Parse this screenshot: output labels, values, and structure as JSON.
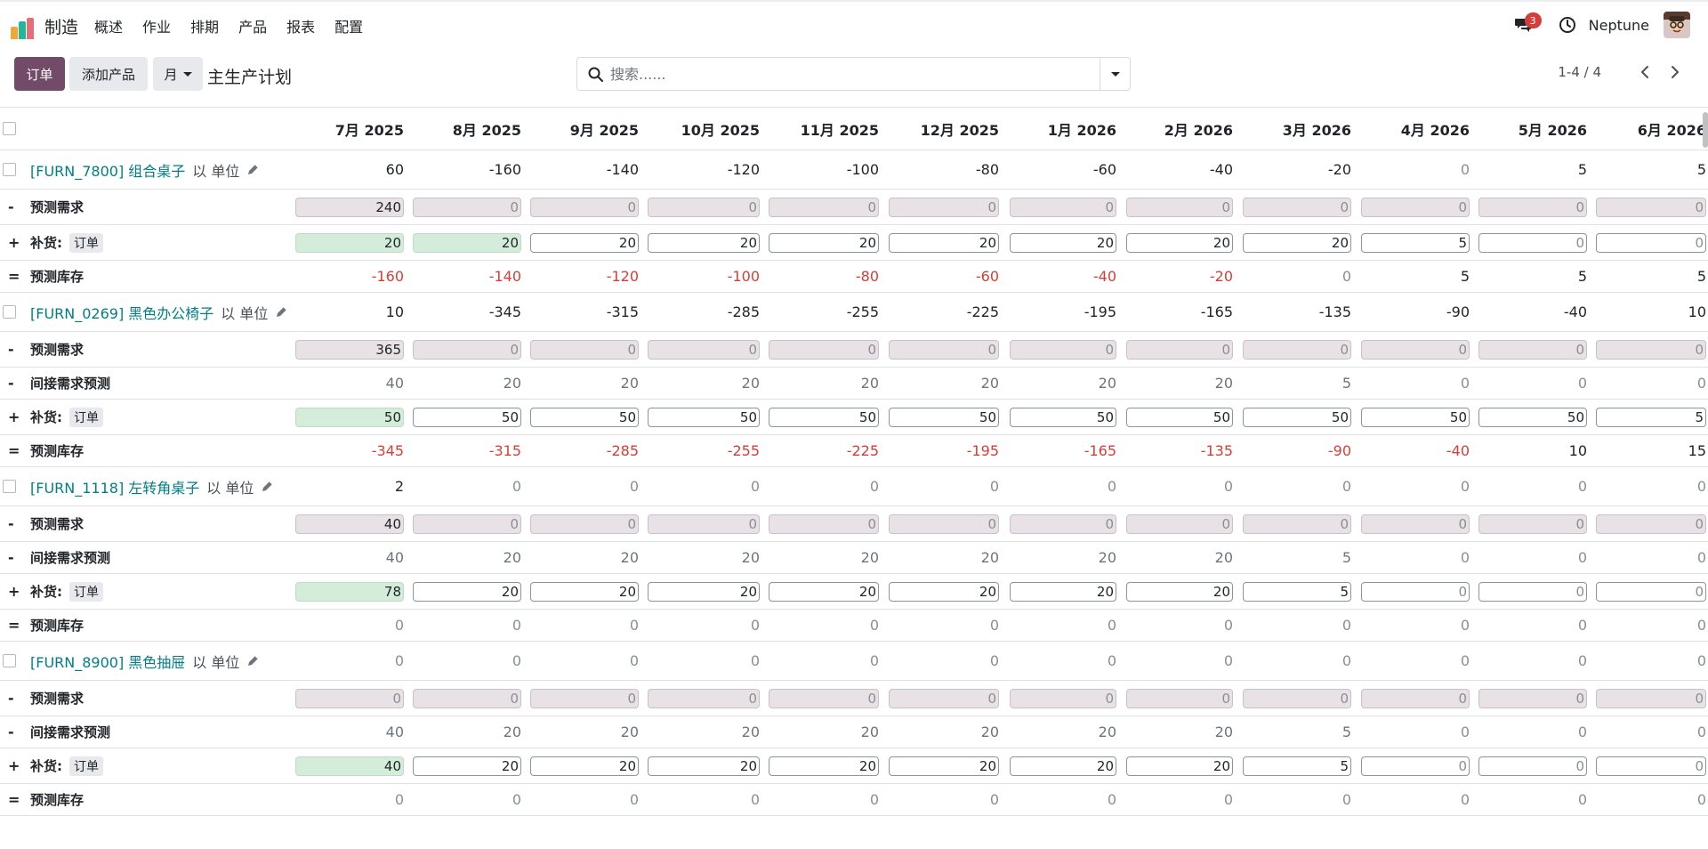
{
  "app": {
    "name": "制造",
    "menu": [
      "概述",
      "作业",
      "排期",
      "产品",
      "报表",
      "配置"
    ],
    "logo_colors": [
      "#f2a53a",
      "#21b799",
      "#5b899e",
      "#e46f78"
    ]
  },
  "navbar": {
    "messages_count": "3",
    "user_name": "Neptune"
  },
  "control_panel": {
    "order_button": "订单",
    "add_product_button": "添加产品",
    "period_button": "月",
    "title": "主生产计划",
    "search_placeholder": "搜索......",
    "pager": "1-4 / 4"
  },
  "grid": {
    "columns": [
      "7月 2025",
      "8月 2025",
      "9月 2025",
      "10月 2025",
      "11月 2025",
      "12月 2025",
      "1月 2026",
      "2月 2026",
      "3月 2026",
      "4月 2026",
      "5月 2026",
      "6月 2026"
    ],
    "labels": {
      "demand": "预测需求",
      "indirect": "间接需求预测",
      "replenish": "补货:",
      "order_tag": "订单",
      "stock": "预测库存",
      "uom": "以 单位"
    },
    "products": [
      {
        "name": "[FURN_7800] 组合桌子",
        "starting": [
          "60",
          "-160",
          "-140",
          "-120",
          "-100",
          "-80",
          "-60",
          "-40",
          "-20",
          "0",
          "5",
          "5"
        ],
        "demand": [
          "240",
          "0",
          "0",
          "0",
          "0",
          "0",
          "0",
          "0",
          "0",
          "0",
          "0",
          "0"
        ],
        "indirect": null,
        "replenish": [
          "20",
          "20",
          "20",
          "20",
          "20",
          "20",
          "20",
          "20",
          "20",
          "5",
          "0",
          "0"
        ],
        "replenish_green": 2,
        "stock": [
          "-160",
          "-140",
          "-120",
          "-100",
          "-80",
          "-60",
          "-40",
          "-20",
          "0",
          "5",
          "5",
          "5"
        ]
      },
      {
        "name": "[FURN_0269] 黑色办公椅子",
        "starting": [
          "10",
          "-345",
          "-315",
          "-285",
          "-255",
          "-225",
          "-195",
          "-165",
          "-135",
          "-90",
          "-40",
          "10"
        ],
        "demand": [
          "365",
          "0",
          "0",
          "0",
          "0",
          "0",
          "0",
          "0",
          "0",
          "0",
          "0",
          "0"
        ],
        "indirect": [
          "40",
          "20",
          "20",
          "20",
          "20",
          "20",
          "20",
          "20",
          "5",
          "0",
          "0",
          "0"
        ],
        "replenish": [
          "50",
          "50",
          "50",
          "50",
          "50",
          "50",
          "50",
          "50",
          "50",
          "50",
          "50",
          "5"
        ],
        "replenish_green": 1,
        "stock": [
          "-345",
          "-315",
          "-285",
          "-255",
          "-225",
          "-195",
          "-165",
          "-135",
          "-90",
          "-40",
          "10",
          "15"
        ]
      },
      {
        "name": "[FURN_1118] 左转角桌子",
        "starting": [
          "2",
          "0",
          "0",
          "0",
          "0",
          "0",
          "0",
          "0",
          "0",
          "0",
          "0",
          "0"
        ],
        "demand": [
          "40",
          "0",
          "0",
          "0",
          "0",
          "0",
          "0",
          "0",
          "0",
          "0",
          "0",
          "0"
        ],
        "indirect": [
          "40",
          "20",
          "20",
          "20",
          "20",
          "20",
          "20",
          "20",
          "5",
          "0",
          "0",
          "0"
        ],
        "replenish": [
          "78",
          "20",
          "20",
          "20",
          "20",
          "20",
          "20",
          "20",
          "5",
          "0",
          "0",
          "0"
        ],
        "replenish_green": 1,
        "stock": [
          "0",
          "0",
          "0",
          "0",
          "0",
          "0",
          "0",
          "0",
          "0",
          "0",
          "0",
          "0"
        ]
      },
      {
        "name": "[FURN_8900] 黑色抽屉",
        "starting": [
          "0",
          "0",
          "0",
          "0",
          "0",
          "0",
          "0",
          "0",
          "0",
          "0",
          "0",
          "0"
        ],
        "demand": [
          "0",
          "0",
          "0",
          "0",
          "0",
          "0",
          "0",
          "0",
          "0",
          "0",
          "0",
          "0"
        ],
        "indirect": [
          "40",
          "20",
          "20",
          "20",
          "20",
          "20",
          "20",
          "20",
          "5",
          "0",
          "0",
          "0"
        ],
        "replenish": [
          "40",
          "20",
          "20",
          "20",
          "20",
          "20",
          "20",
          "20",
          "5",
          "0",
          "0",
          "0"
        ],
        "replenish_green": 1,
        "stock": [
          "0",
          "0",
          "0",
          "0",
          "0",
          "0",
          "0",
          "0",
          "0",
          "0",
          "0",
          "0"
        ]
      }
    ]
  }
}
